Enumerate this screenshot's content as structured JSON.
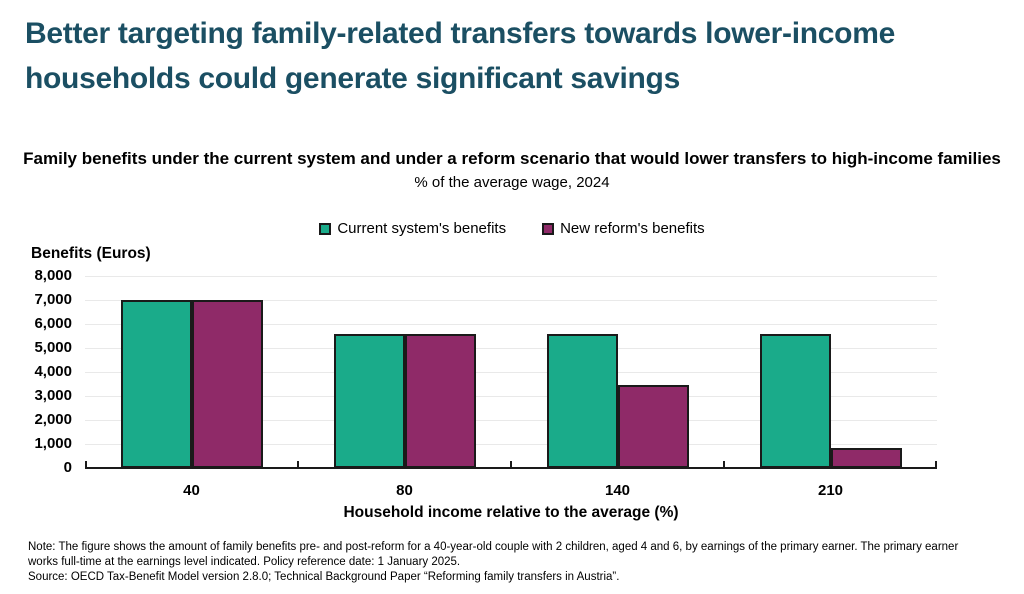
{
  "title": "Better targeting family-related transfers towards lower-income households could generate significant savings",
  "subtitle": "Family benefits under the current system and under a reform scenario that would lower transfers to high-income families",
  "subtitle2": "% of the average wage, 2024",
  "colors": {
    "title": "#1B4F63",
    "current_series": "#1AAB8A",
    "reform_series": "#8F2A68",
    "bar_border": "#1a1a1a",
    "gridline": "#e9e9e9"
  },
  "legend": [
    {
      "label": "Current system's benefits",
      "color": "#1AAB8A"
    },
    {
      "label": "New reform's benefits",
      "color": "#8F2A68"
    }
  ],
  "note": "Note: The figure shows the amount of family benefits pre- and post-reform for a 40-year-old couple with 2 children, aged 4 and 6, by earnings of the primary earner. The primary earner works full-time at the earnings level indicated. Policy reference date: 1 January 2025.",
  "source": "Source: OECD Tax-Benefit Model version 2.8.0; Technical Background Paper “Reforming family transfers in Austria”.",
  "chart_data": {
    "type": "bar",
    "title": "Family benefits under the current system and under a reform scenario that would lower transfers to high-income families",
    "subtitle": "% of the average wage, 2024",
    "xlabel": "Household income relative to the average (%)",
    "ylabel": "Benefits (Euros)",
    "categories": [
      "40",
      "80",
      "140",
      "210"
    ],
    "series": [
      {
        "name": "Current system's benefits",
        "color": "#1AAB8A",
        "values": [
          7000,
          5600,
          5600,
          5600
        ]
      },
      {
        "name": "New reform's benefits",
        "color": "#8F2A68",
        "values": [
          7000,
          5600,
          3450,
          850
        ]
      }
    ],
    "ylim": [
      0,
      8000
    ],
    "ytick_step": 1000,
    "ytick_labels": [
      "0",
      "1,000",
      "2,000",
      "3,000",
      "4,000",
      "5,000",
      "6,000",
      "7,000",
      "8,000"
    ],
    "grid": true,
    "legend_position": "top-center"
  }
}
